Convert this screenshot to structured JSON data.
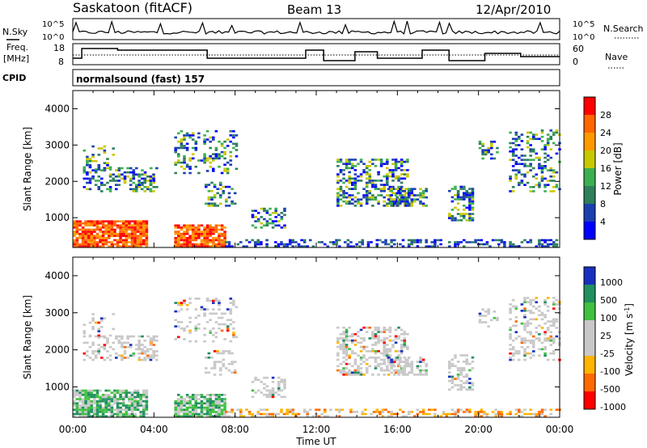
{
  "header": {
    "station": "Saskatoon (fitACF)",
    "beam": "Beam 13",
    "date": "12/Apr/2010"
  },
  "strip_labels": {
    "nsky": "N.Sky",
    "nsky_ticks": [
      "10^5",
      "10^0"
    ],
    "nsearch": "N.Search",
    "nsearch_ticks": [
      "10^5",
      "10^0"
    ],
    "freq_line1": "Freq.",
    "freq_line2": "[MHz]",
    "freq_ticks": [
      "18",
      "8"
    ],
    "nave": "Nave",
    "nave_ticks": [
      "60",
      "0"
    ],
    "cpid": "CPID",
    "cpid_text": "normalsound (fast) 157"
  },
  "colors": {
    "power": [
      "#0000ff",
      "#1a40b0",
      "#2e7f5a",
      "#3cb050",
      "#c8c800",
      "#ff9900",
      "#ff6600",
      "#ff0000"
    ],
    "velocity": [
      "#ff0000",
      "#ff6a00",
      "#ffb400",
      "#c8c8c8",
      "#c8c8c8",
      "#40c040",
      "#209060",
      "#1830c0"
    ]
  },
  "chart_data": [
    {
      "type": "heatmap",
      "name": "Power",
      "ylabel": "Slant Range [km]",
      "ylim": [
        180,
        4500
      ],
      "y_ticks": [
        "1000",
        "2000",
        "3000",
        "4000"
      ],
      "xlim": [
        "00:00",
        "24:00"
      ],
      "colorbar_label": "Power [dB]",
      "colorbar_ticks": [
        "4",
        "8",
        "12",
        "16",
        "20",
        "24",
        "28"
      ],
      "colorbar_range": [
        0,
        30
      ]
    },
    {
      "type": "heatmap",
      "name": "Velocity",
      "ylabel": "Slant Range [km]",
      "ylim": [
        180,
        4500
      ],
      "y_ticks": [
        "1000",
        "2000",
        "3000",
        "4000"
      ],
      "xlim": [
        "00:00",
        "24:00"
      ],
      "xlabel": "Time UT",
      "x_ticks": [
        "00:00",
        "04:00",
        "08:00",
        "12:00",
        "16:00",
        "20:00",
        "00:00"
      ],
      "colorbar_label": "Velocity [m s",
      "colorbar_label_sup": "-1",
      "colorbar_label_end": "]",
      "colorbar_ticks": [
        "1000",
        "500",
        "100",
        "25",
        "-25",
        "-100",
        "-500",
        "-1000"
      ]
    }
  ]
}
